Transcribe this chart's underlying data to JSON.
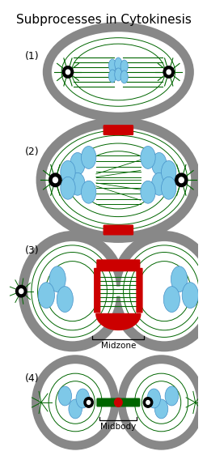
{
  "title": "Subprocesses in Cytokinesis",
  "title_fontsize": 11,
  "bg_color": "#ffffff",
  "gray_cell": "#888888",
  "white_inner": "#ffffff",
  "blue_chrom": "#7ec8e8",
  "blue_chrom_dark": "#4490c8",
  "green_fiber": "#006600",
  "red_ring": "#cc0000",
  "black": "#000000",
  "labels": [
    "(1)",
    "(2)",
    "(3)",
    "(4)"
  ],
  "sublabels": [
    "Midzone",
    "Midbody"
  ]
}
